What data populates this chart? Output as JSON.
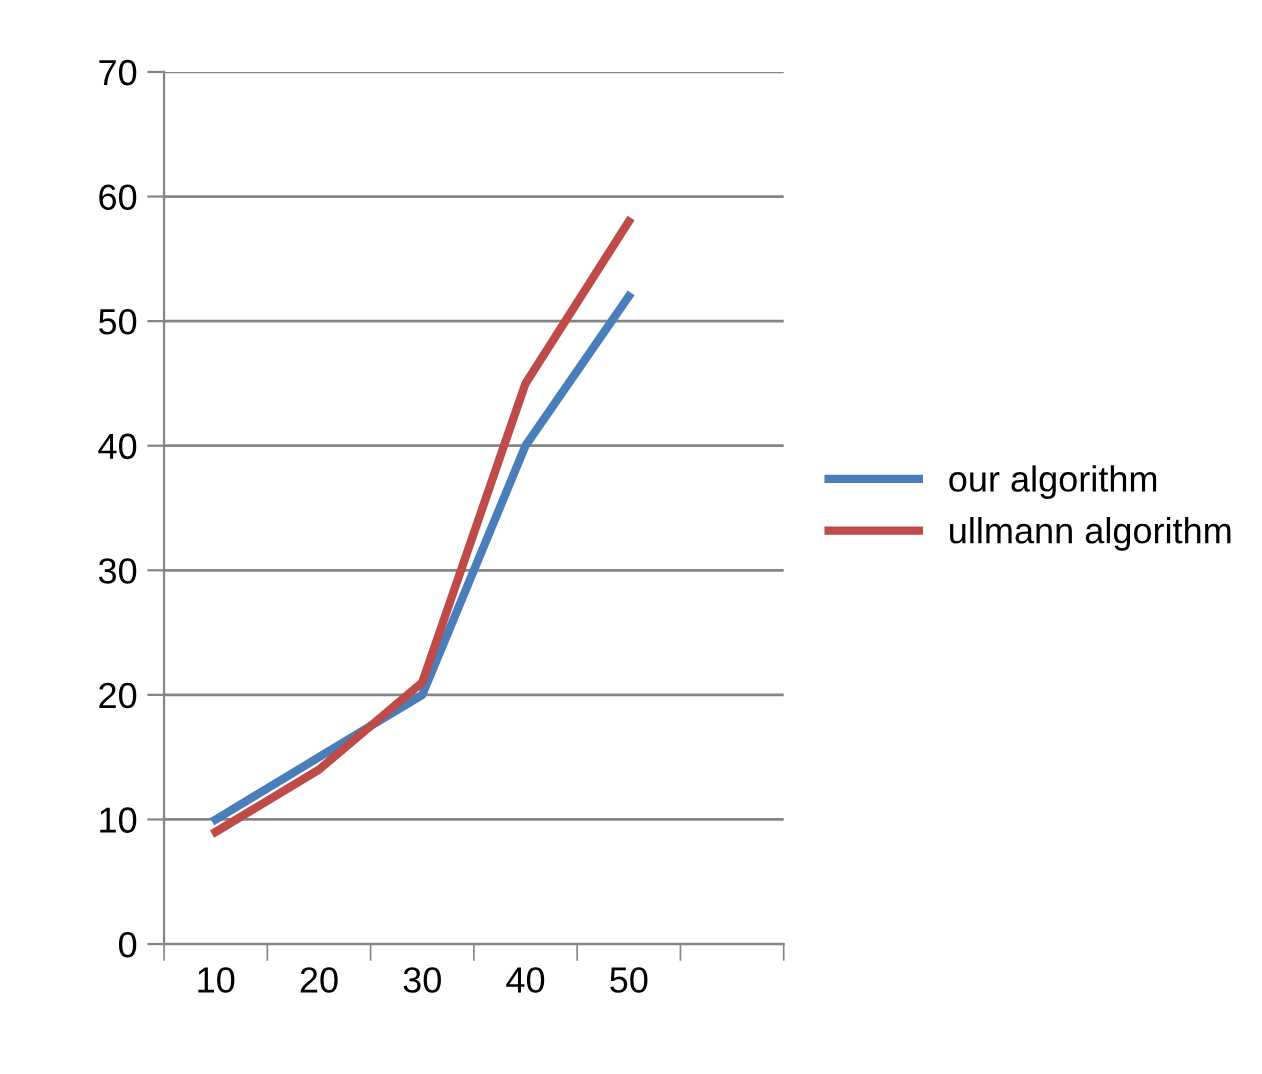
{
  "chart_data": {
    "type": "line",
    "categories": [
      "10",
      "20",
      "30",
      "40",
      "50",
      null
    ],
    "series": [
      {
        "name": "our algorithm",
        "color": "#4a7ebb",
        "values": [
          10,
          15,
          20,
          40,
          52,
          null
        ]
      },
      {
        "name": "ullmann algorithm",
        "color": "#be4b48",
        "values": [
          9,
          14,
          21,
          45,
          58,
          null
        ]
      }
    ],
    "ylim": [
      0,
      70
    ],
    "yticks": [
      0,
      10,
      20,
      30,
      40,
      50,
      60,
      70
    ],
    "grid": "y",
    "legend": "right",
    "marker": "none",
    "line_style": "solid"
  }
}
